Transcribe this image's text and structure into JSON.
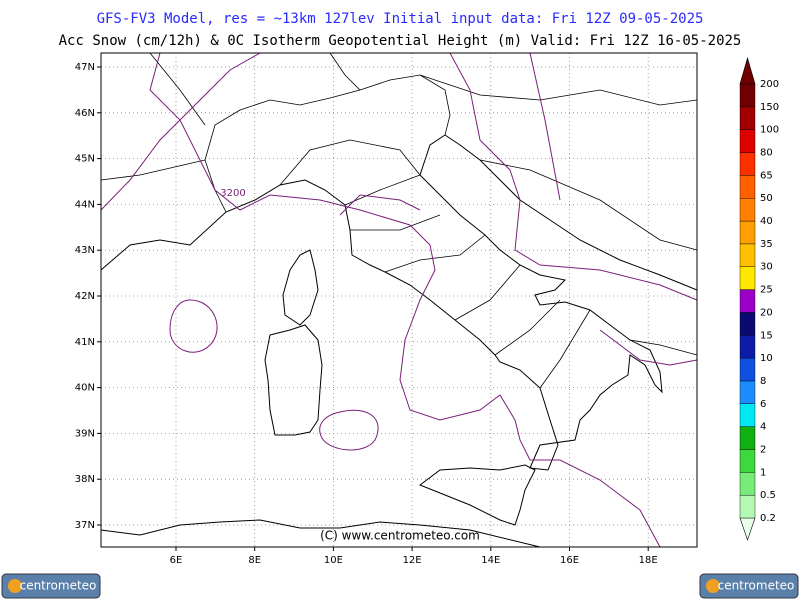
{
  "header": {
    "title": "GFS-FV3 Model, res = ~13km 127lev    Initial input data: Fri 12Z 09-05-2025",
    "subtitle": "Acc Snow (cm/12h) & 0C Isotherm Geopotential Height (m)  Valid: Fri 12Z 16-05-2025"
  },
  "map": {
    "lat_labels": [
      "47N",
      "46N",
      "45N",
      "44N",
      "43N",
      "42N",
      "41N",
      "40N",
      "39N",
      "38N",
      "37N"
    ],
    "lon_labels": [
      "6E",
      "8E",
      "10E",
      "12E",
      "14E",
      "16E",
      "18E"
    ],
    "contour_label": "3200",
    "copyright": "(C)  www.centrometeo.com"
  },
  "colorbar": {
    "labels": [
      "0.2",
      "0.5",
      "1",
      "2",
      "4",
      "6",
      "8",
      "10",
      "15",
      "20",
      "25",
      "30",
      "35",
      "40",
      "50",
      "65",
      "80",
      "100",
      "150",
      "200"
    ],
    "colors": [
      "#e8ffe8",
      "#b4f8b4",
      "#78ec78",
      "#3cd83c",
      "#10b010",
      "#00e8f0",
      "#1c8cff",
      "#1050e0",
      "#0c1ca8",
      "#0a0a70",
      "#9c00c8",
      "#ffe800",
      "#ffc000",
      "#ffa000",
      "#ff8000",
      "#ff6000",
      "#ff3000",
      "#e00000",
      "#a00000",
      "#700000"
    ]
  },
  "footer": {
    "logo_left": "centrometeo",
    "logo_right": "centrometeo"
  }
}
